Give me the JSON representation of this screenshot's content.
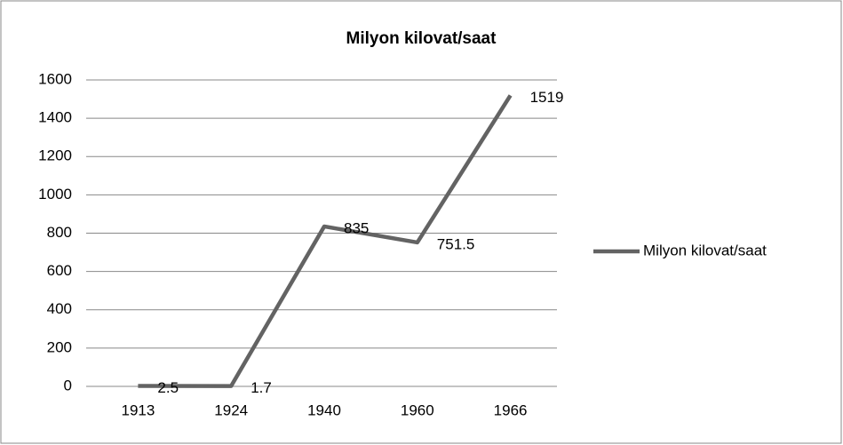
{
  "chart_data": {
    "type": "line",
    "title": "Milyon kilovat/saat",
    "categories": [
      "1913",
      "1924",
      "1940",
      "1960",
      "1966"
    ],
    "series": [
      {
        "name": "Milyon kilovat/saat",
        "color": "#636363",
        "values": [
          2.5,
          1.7,
          835,
          751.5,
          1519
        ]
      }
    ],
    "ylim": [
      0,
      1600
    ],
    "yticks": [
      0,
      200,
      400,
      600,
      800,
      1000,
      1200,
      1400,
      1600
    ],
    "grid": true,
    "legend": "right",
    "data_labels": true
  }
}
